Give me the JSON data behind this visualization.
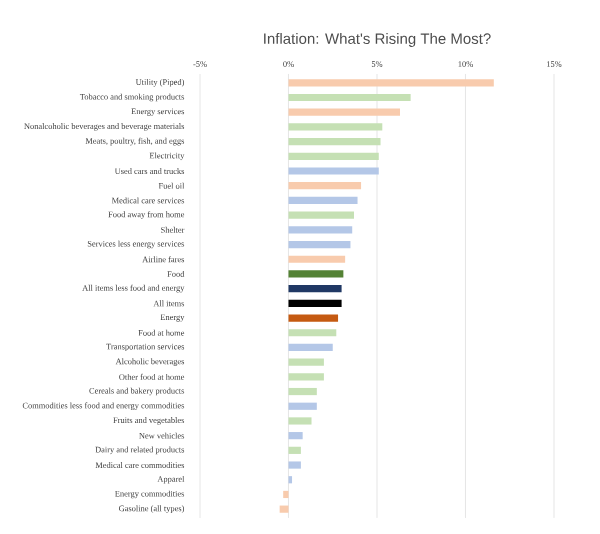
{
  "chart_data": {
    "type": "bar",
    "orientation": "horizontal",
    "title": "Inflation: What's Rising The Most?",
    "categories": [
      "Utility (Piped)",
      "Tobacco and smoking products",
      "Energy services",
      "Nonalcoholic beverages and beverage materials",
      "Meats, poultry, fish, and eggs",
      "Electricity",
      "Used cars and trucks",
      "Fuel oil",
      "Medical care services",
      "Food away from home",
      "Shelter",
      "Services less energy services",
      "Airline fares",
      "Food",
      "All items less food and energy",
      "All items",
      "Energy",
      "Food at home",
      "Transportation services",
      "Alcoholic beverages",
      "Other food at home",
      "Cereals and bakery products",
      "Commodities less food and energy commodities",
      "Fruits and vegetables",
      "New vehicles",
      "Dairy and related products",
      "Medical care commodities",
      "Apparel",
      "Energy commodities",
      "Gasoline (all types)"
    ],
    "values": [
      11.6,
      6.9,
      6.3,
      5.3,
      5.2,
      5.1,
      5.1,
      4.1,
      3.9,
      3.7,
      3.6,
      3.5,
      3.2,
      3.1,
      3.0,
      3.0,
      2.8,
      2.7,
      2.5,
      2.0,
      2.0,
      1.6,
      1.6,
      1.3,
      0.8,
      0.7,
      0.7,
      0.2,
      -0.3,
      -0.5
    ],
    "colors": [
      "#f8cbad",
      "#c5e0b4",
      "#f8cbad",
      "#c5e0b4",
      "#c5e0b4",
      "#c5e0b4",
      "#b4c7e7",
      "#f8cbad",
      "#b4c7e7",
      "#c5e0b4",
      "#b4c7e7",
      "#b4c7e7",
      "#f8cbad",
      "#548235",
      "#203864",
      "#000000",
      "#c55a11",
      "#c5e0b4",
      "#b4c7e7",
      "#c5e0b4",
      "#c5e0b4",
      "#c5e0b4",
      "#b4c7e7",
      "#c5e0b4",
      "#b4c7e7",
      "#c5e0b4",
      "#b4c7e7",
      "#b4c7e7",
      "#f8cbad",
      "#f8cbad"
    ],
    "xlim": [
      -5,
      15
    ],
    "xticks": [
      {
        "value": -5,
        "label": "-5%"
      },
      {
        "value": 0,
        "label": "0%"
      },
      {
        "value": 5,
        "label": "5%"
      },
      {
        "value": 10,
        "label": "10%"
      },
      {
        "value": 15,
        "label": "15%"
      }
    ],
    "grid": "x"
  }
}
